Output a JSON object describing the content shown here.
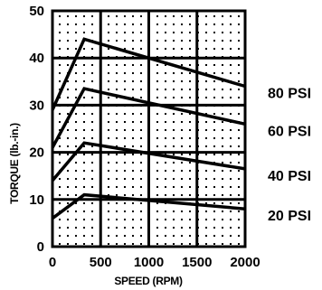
{
  "chart_data": {
    "type": "line",
    "xlabel": "SPEED (RPM)",
    "ylabel": "TORQUE (lb.-in.)",
    "xlim": [
      0,
      2000
    ],
    "ylim": [
      0,
      50
    ],
    "xticks": [
      0,
      500,
      1000,
      1500,
      2000
    ],
    "yticks": [
      0,
      10,
      20,
      30,
      40,
      50
    ],
    "grid": true,
    "background_pattern": "dotted",
    "series": [
      {
        "name": "80 PSI",
        "x": [
          0,
          330,
          2000
        ],
        "y": [
          29,
          44,
          34
        ]
      },
      {
        "name": "60 PSI",
        "x": [
          0,
          330,
          2000
        ],
        "y": [
          21,
          33.5,
          26
        ]
      },
      {
        "name": "40 PSI",
        "x": [
          0,
          330,
          2000
        ],
        "y": [
          14,
          22,
          16.5
        ]
      },
      {
        "name": "20 PSI",
        "x": [
          0,
          330,
          2000
        ],
        "y": [
          6,
          11,
          8
        ]
      }
    ]
  }
}
